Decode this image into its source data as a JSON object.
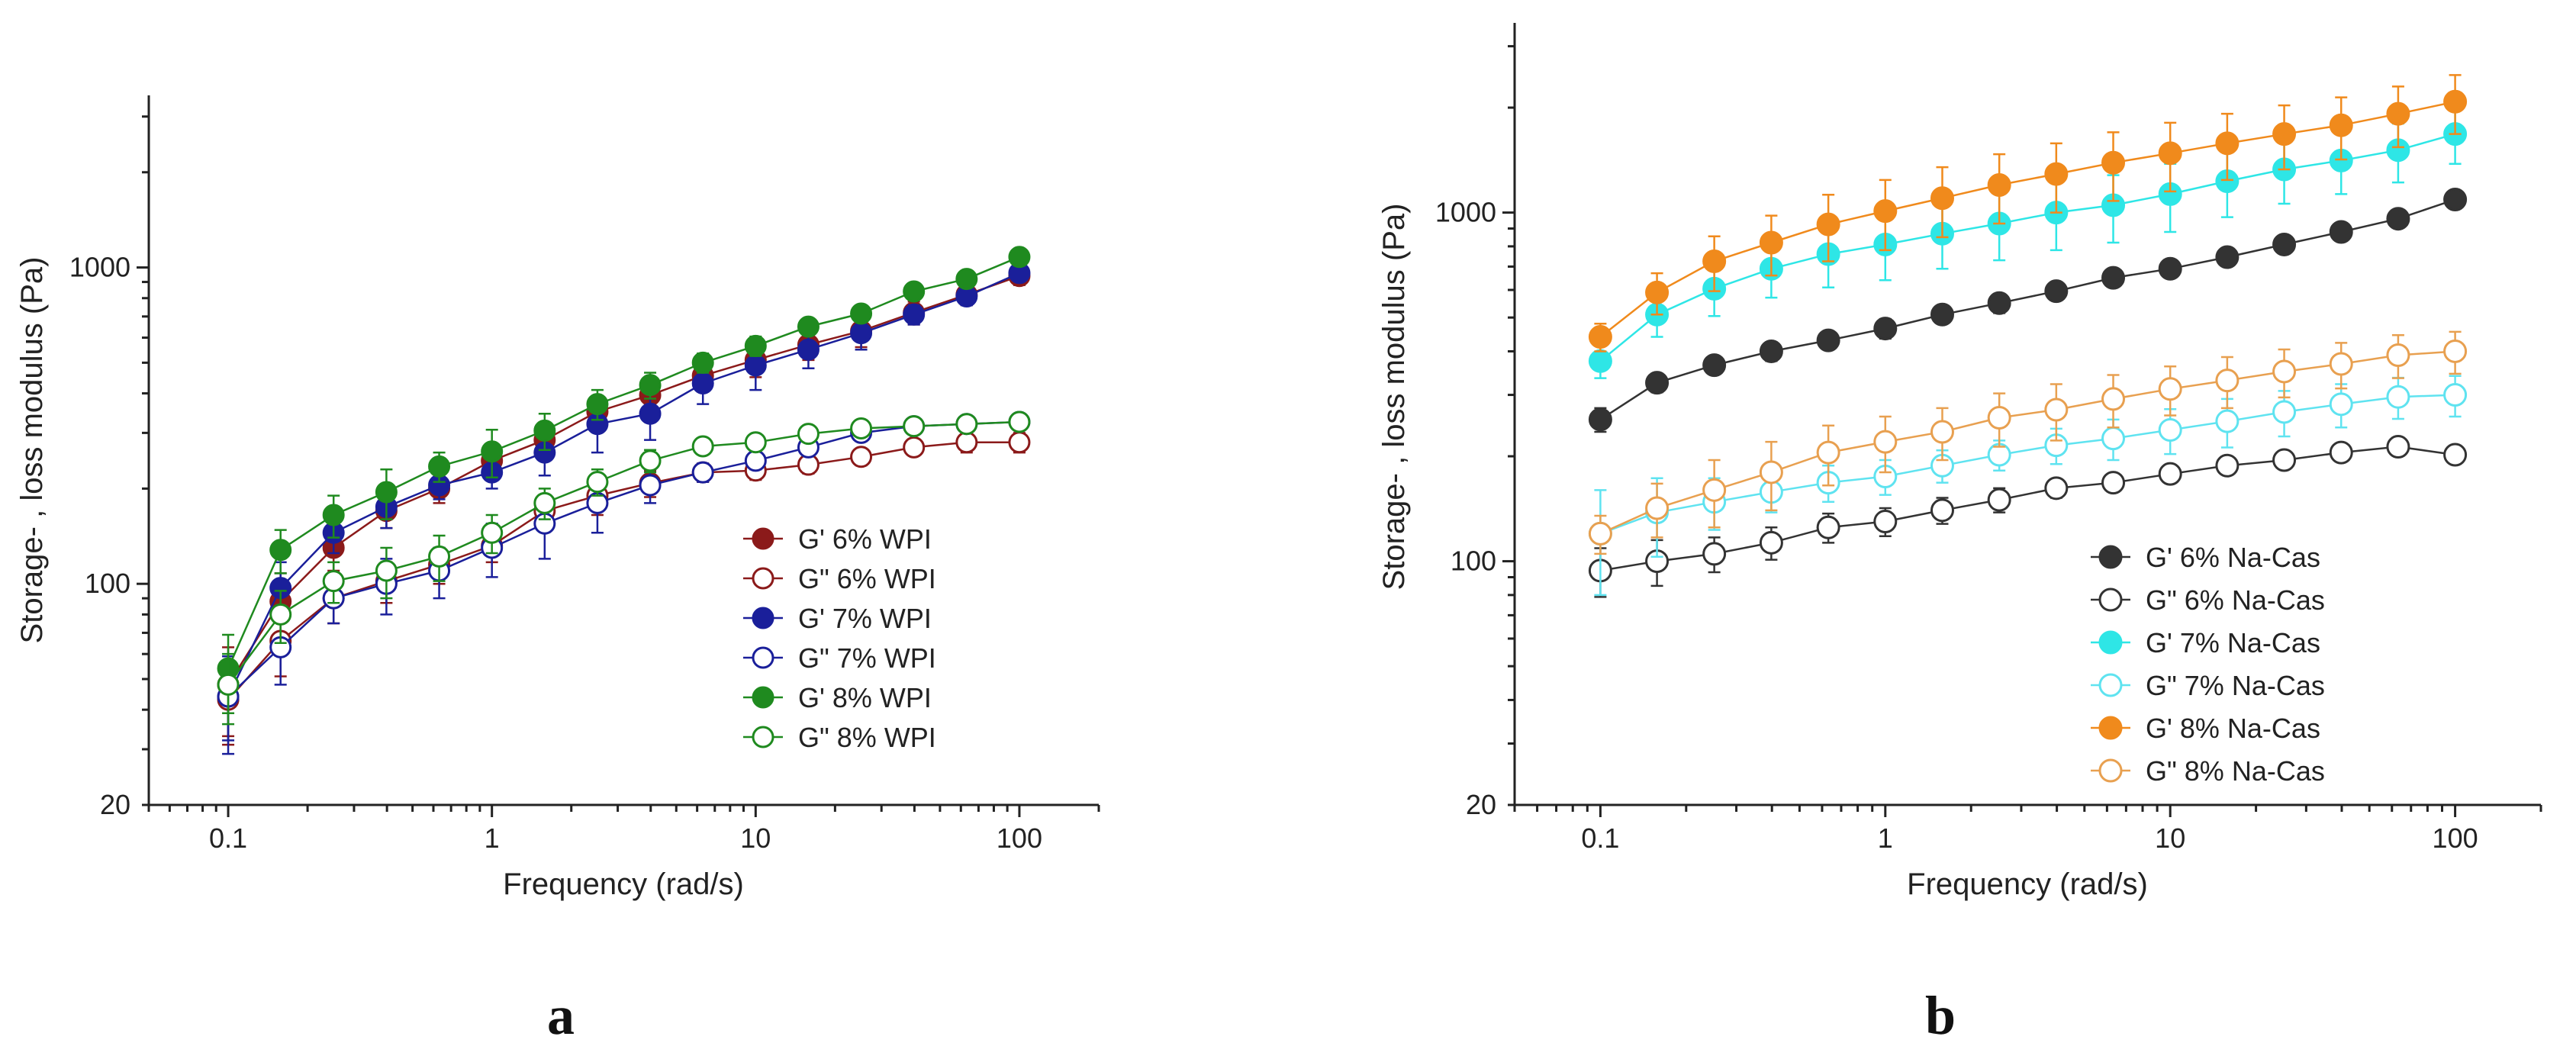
{
  "chart_data": [
    {
      "type": "scatter",
      "panel_label": "a",
      "title": "",
      "xlabel": "Frequency (rad/s)",
      "ylabel": "Storage- , loss modulus (Pa)",
      "xscale": "log",
      "yscale": "log",
      "xlim": [
        0.05,
        200
      ],
      "ylim": [
        20,
        3500
      ],
      "xticks": [
        0.1,
        1,
        10,
        100
      ],
      "xtick_labels": [
        "0.1",
        "1",
        "10",
        "100"
      ],
      "yticks": [
        20,
        100,
        1000
      ],
      "ytick_labels": [
        "20",
        "100",
        "1000"
      ],
      "legend_position": "lower-right",
      "x": [
        0.1,
        0.158,
        0.251,
        0.398,
        0.631,
        1,
        1.585,
        2.512,
        3.981,
        6.31,
        10,
        15.85,
        25.12,
        39.81,
        63.1,
        100
      ],
      "series": [
        {
          "name": "G' 6% WPI",
          "color": "#8b1a1a",
          "marker": "filled",
          "values": [
            48,
            88,
            130,
            170,
            200,
            245,
            285,
            350,
            395,
            455,
            510,
            570,
            630,
            720,
            820,
            940
          ],
          "errors": [
            15,
            20,
            20,
            20,
            20,
            25,
            30,
            40,
            50,
            50,
            60,
            60,
            70,
            60,
            60,
            60
          ]
        },
        {
          "name": "G\" 6% WPI",
          "color": "#8b1a1a",
          "marker": "open",
          "values": [
            43,
            66,
            90,
            102,
            115,
            132,
            170,
            190,
            208,
            225,
            228,
            238,
            252,
            270,
            280,
            280
          ],
          "errors": [
            12,
            15,
            15,
            15,
            15,
            15,
            20,
            25,
            20,
            15,
            15,
            15,
            15,
            15,
            20,
            20
          ]
        },
        {
          "name": "G' 7% WPI",
          "color": "#1a1f9a",
          "marker": "filled",
          "values": [
            44,
            97,
            145,
            175,
            205,
            225,
            260,
            320,
            345,
            430,
            490,
            550,
            620,
            710,
            810,
            960
          ],
          "errors": [
            15,
            20,
            20,
            25,
            20,
            25,
            40,
            60,
            60,
            60,
            80,
            70,
            70,
            50,
            50,
            50
          ]
        },
        {
          "name": "G\" 7% WPI",
          "color": "#1a1f9a",
          "marker": "open",
          "values": [
            44,
            63,
            90,
            100,
            110,
            130,
            155,
            180,
            205,
            225,
            245,
            270,
            300,
            315,
            320,
            325
          ],
          "errors": [
            12,
            15,
            15,
            20,
            20,
            25,
            35,
            35,
            25,
            15,
            15,
            15,
            15,
            15,
            15,
            15
          ]
        },
        {
          "name": "G' 8% WPI",
          "color": "#1f8a1f",
          "marker": "filled",
          "values": [
            54,
            128,
            165,
            195,
            235,
            262,
            305,
            370,
            425,
            500,
            565,
            650,
            715,
            840,
            920,
            1080
          ],
          "errors": [
            15,
            20,
            25,
            35,
            25,
            45,
            40,
            40,
            40,
            35,
            40,
            35,
            30,
            30,
            30,
            30
          ]
        },
        {
          "name": "G\" 8% WPI",
          "color": "#1f8a1f",
          "marker": "open",
          "values": [
            48,
            80,
            102,
            110,
            122,
            145,
            180,
            210,
            245,
            272,
            280,
            298,
            310,
            315,
            320,
            325
          ],
          "errors": [
            12,
            15,
            15,
            20,
            20,
            20,
            20,
            20,
            20,
            15,
            15,
            15,
            15,
            15,
            15,
            15
          ]
        }
      ]
    },
    {
      "type": "scatter",
      "panel_label": "b",
      "title": "",
      "xlabel": "Frequency (rad/s)",
      "ylabel": "Storage- , loss modulus (Pa)",
      "xscale": "log",
      "yscale": "log",
      "xlim": [
        0.05,
        200
      ],
      "ylim": [
        20,
        3500
      ],
      "xticks": [
        0.1,
        1,
        10,
        100
      ],
      "xtick_labels": [
        "0.1",
        "1",
        "10",
        "100"
      ],
      "yticks": [
        20,
        100,
        1000
      ],
      "ytick_labels": [
        "20",
        "100",
        "1000"
      ],
      "legend_position": "lower-right",
      "x": [
        0.1,
        0.158,
        0.251,
        0.398,
        0.631,
        1,
        1.585,
        2.512,
        3.981,
        6.31,
        10,
        15.85,
        25.12,
        39.81,
        63.1,
        100
      ],
      "series": [
        {
          "name": "G' 6% Na-Cas",
          "color": "#333333",
          "marker": "filled",
          "values": [
            255,
            325,
            365,
            400,
            430,
            465,
            510,
            550,
            595,
            650,
            690,
            745,
            810,
            880,
            960,
            1090
          ],
          "errors": [
            20,
            20,
            20,
            25,
            25,
            30,
            30,
            35,
            35,
            35,
            40,
            40,
            45,
            45,
            45,
            50
          ]
        },
        {
          "name": "G\" 6% Na-Cas",
          "color": "#333333",
          "marker": "open",
          "values": [
            94,
            100,
            105,
            113,
            125,
            130,
            140,
            150,
            162,
            168,
            178,
            188,
            195,
            205,
            213,
            202
          ],
          "errors": [
            15,
            15,
            12,
            12,
            12,
            12,
            12,
            12,
            10,
            10,
            10,
            10,
            8,
            8,
            8,
            8
          ]
        },
        {
          "name": "G' 7% Na-Cas",
          "color": "#2ee6e6",
          "marker": "filled",
          "values": [
            375,
            510,
            605,
            690,
            760,
            810,
            870,
            930,
            1000,
            1050,
            1130,
            1230,
            1330,
            1410,
            1510,
            1680
          ],
          "errors": [
            40,
            70,
            100,
            120,
            150,
            170,
            180,
            200,
            220,
            230,
            250,
            260,
            270,
            280,
            290,
            300
          ]
        },
        {
          "name": "G\" 7% Na-Cas",
          "color": "#5fe3f0",
          "marker": "open",
          "values": [
            120,
            138,
            148,
            158,
            168,
            175,
            188,
            202,
            215,
            225,
            238,
            252,
            268,
            282,
            296,
            300
          ],
          "errors": [
            40,
            35,
            25,
            20,
            20,
            20,
            20,
            20,
            25,
            30,
            35,
            40,
            40,
            40,
            40,
            40
          ]
        },
        {
          "name": "G' 8% Na-Cas",
          "color": "#f08a1c",
          "marker": "filled",
          "values": [
            440,
            590,
            725,
            820,
            925,
            1010,
            1100,
            1200,
            1290,
            1390,
            1480,
            1580,
            1680,
            1780,
            1920,
            2080
          ],
          "errors": [
            40,
            80,
            130,
            160,
            200,
            230,
            250,
            270,
            290,
            310,
            330,
            340,
            350,
            360,
            380,
            400
          ]
        },
        {
          "name": "G\" 8% Na-Cas",
          "color": "#e8a050",
          "marker": "open",
          "values": [
            120,
            142,
            160,
            180,
            205,
            220,
            235,
            258,
            272,
            292,
            312,
            330,
            350,
            368,
            390,
            400
          ],
          "errors": [
            15,
            25,
            35,
            40,
            40,
            40,
            40,
            45,
            50,
            50,
            50,
            55,
            55,
            55,
            55,
            55
          ]
        }
      ]
    }
  ]
}
